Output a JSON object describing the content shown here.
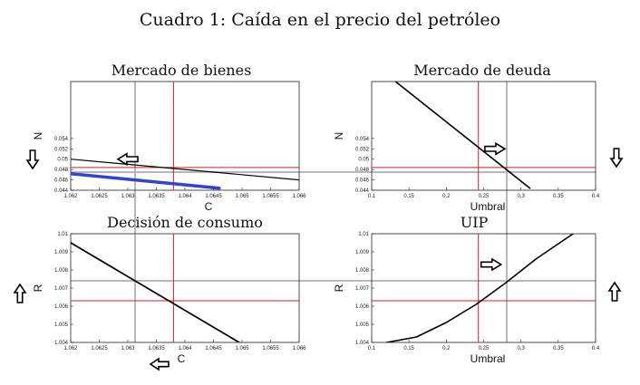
{
  "figure": {
    "title": "Cuadro 1: Caída en el precio del petróleo"
  },
  "chart_data": [
    {
      "id": "bienes",
      "type": "line",
      "title": "Mercado de bienes",
      "xlabel": "C",
      "ylabel": "N",
      "xlim": [
        1.062,
        1.066
      ],
      "ylim": [
        0.044,
        0.065
      ],
      "xticks": [
        "1.062",
        "1.0625",
        "1.063",
        "1.0635",
        "1.064",
        "1.0645",
        "1.065",
        "1.0655",
        "1.066"
      ],
      "yticks": [
        "0.044",
        "0.046",
        "0.048",
        "0.05",
        "0.052",
        "0.054"
      ],
      "series": [
        {
          "color": "#000000",
          "width": 1.2,
          "x": [
            1.062,
            1.066
          ],
          "y": [
            0.05,
            0.046
          ]
        },
        {
          "color": "#3344cc",
          "width": 3.5,
          "x": [
            1.062,
            1.0646
          ],
          "y": [
            0.0472,
            0.0444
          ]
        }
      ],
      "hlines": [
        {
          "y": 0.0484,
          "color": "#cc2222"
        }
      ],
      "vlines": [
        {
          "x": 1.0638,
          "color": "#cc2222"
        }
      ],
      "arrows": [
        {
          "dir": "left",
          "x": 1.063,
          "y": 0.05
        }
      ]
    },
    {
      "id": "deuda",
      "type": "line",
      "title": "Mercado de deuda",
      "xlabel": "Umbral",
      "ylabel": "N",
      "xlim": [
        0.1,
        0.4
      ],
      "ylim": [
        0.044,
        0.065
      ],
      "xticks": [
        "0.1",
        "0.15",
        "0.2",
        "0.25",
        "0.3",
        "0.35",
        "0.4"
      ],
      "yticks": [
        "0.044",
        "0.046",
        "0.048",
        "0.05",
        "0.052",
        "0.054"
      ],
      "series": [
        {
          "color": "#000000",
          "width": 1.6,
          "x": [
            0.132,
            0.312
          ],
          "y": [
            0.065,
            0.0444
          ]
        }
      ],
      "hlines": [
        {
          "y": 0.0484,
          "color": "#cc2222"
        }
      ],
      "vlines": [
        {
          "x": 0.243,
          "color": "#cc2222"
        }
      ],
      "arrows": [
        {
          "dir": "right",
          "x": 0.265,
          "y": 0.052
        }
      ]
    },
    {
      "id": "consumo",
      "type": "line",
      "title": "Decisión de consumo",
      "xlabel": "C",
      "ylabel": "R",
      "xlim": [
        1.062,
        1.066
      ],
      "ylim": [
        1.004,
        1.01
      ],
      "xticks": [
        "1.062",
        "1.0625",
        "1.063",
        "1.0635",
        "1.064",
        "1.0645",
        "1.065",
        "1.0655",
        "1.066"
      ],
      "yticks": [
        "1.004",
        "1.005",
        "1.006",
        "1.007",
        "1.008",
        "1.009",
        "1.01"
      ],
      "series": [
        {
          "color": "#000000",
          "width": 1.8,
          "x": [
            1.062,
            1.06495
          ],
          "y": [
            1.0095,
            1.004
          ]
        }
      ],
      "hlines": [
        {
          "y": 1.0063,
          "color": "#cc2222"
        }
      ],
      "vlines": [
        {
          "x": 1.0638,
          "color": "#cc2222"
        }
      ],
      "arrows": []
    },
    {
      "id": "uip",
      "type": "line",
      "title": "UIP",
      "xlabel": "Umbral",
      "ylabel": "R",
      "xlim": [
        0.1,
        0.4
      ],
      "ylim": [
        1.004,
        1.01
      ],
      "xticks": [
        "0.1",
        "0.15",
        "0.2",
        "0.25",
        "0.3",
        "0.35",
        "0.4"
      ],
      "yticks": [
        "1.004",
        "1.005",
        "1.006",
        "1.007",
        "1.008",
        "1.009",
        "1.01"
      ],
      "series": [
        {
          "color": "#000000",
          "width": 1.6,
          "x": [
            0.12,
            0.16,
            0.2,
            0.24,
            0.28,
            0.32,
            0.37
          ],
          "y": [
            1.004,
            1.0043,
            1.0051,
            1.0061,
            1.0073,
            1.0086,
            1.01
          ]
        }
      ],
      "hlines": [
        {
          "y": 1.0063,
          "color": "#cc2222"
        }
      ],
      "vlines": [
        {
          "x": 0.243,
          "color": "#cc2222"
        }
      ],
      "arrows": [
        {
          "dir": "right",
          "x": 0.26,
          "y": 1.0083
        }
      ]
    }
  ],
  "outer_arrows": [
    {
      "id": "bienes-outer",
      "dir": "down"
    },
    {
      "id": "deuda-outer",
      "dir": "down"
    },
    {
      "id": "consumo-outer",
      "dir": "up"
    },
    {
      "id": "uip-outer",
      "dir": "up"
    },
    {
      "id": "consumo-bottom",
      "dir": "left"
    }
  ],
  "guide_color": "#b8b8b8"
}
